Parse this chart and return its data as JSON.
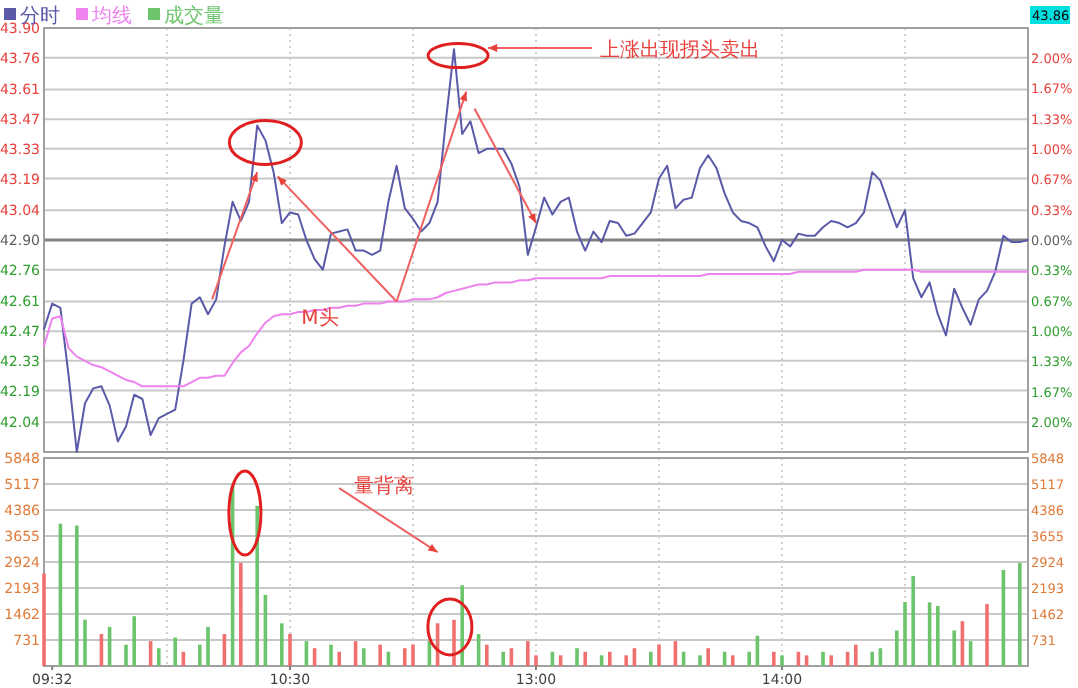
{
  "chart_data": [
    {
      "type": "line",
      "categories": [
        null,
        null,
        null,
        null,
        null,
        null,
        null,
        null,
        null,
        null,
        null,
        null,
        null,
        null,
        null,
        null,
        null,
        null,
        null,
        null,
        null,
        null,
        null,
        null,
        null,
        null,
        null,
        null,
        null,
        null,
        null,
        null,
        null,
        null,
        null,
        null,
        null,
        null,
        null,
        null,
        null,
        null,
        null,
        null,
        null,
        null,
        null,
        null,
        null,
        null,
        null,
        null,
        null,
        null,
        null,
        null,
        null,
        null,
        null,
        null,
        null,
        null,
        null,
        null,
        null,
        null,
        null,
        null,
        null,
        null,
        null,
        null,
        null,
        null,
        null,
        null,
        null,
        null,
        null,
        null,
        null,
        null,
        null,
        null,
        null,
        null,
        null,
        null,
        null,
        null,
        null,
        null,
        null,
        null,
        null,
        null,
        null,
        null,
        null,
        null,
        null,
        null,
        null,
        null,
        null,
        null,
        null,
        null,
        null,
        null,
        null,
        null,
        null,
        null,
        null,
        null,
        null,
        null,
        null,
        null,
        null
      ],
      "ylim": [
        41.9,
        43.9
      ],
      "yticks": [
        {
          "value": 41.9,
          "label": null
        },
        42.04,
        42.19,
        42.33,
        42.47,
        42.61,
        42.76,
        {
          "value": 42.9,
          "label": "42.90"
        },
        43.04,
        43.19,
        43.33,
        43.47,
        43.61,
        43.76,
        {
          "value": 43.9,
          "label": "43.90"
        }
      ],
      "y2lim": [
        -2.33,
        2.33
      ],
      "y2ticks": [
        {
          "value": -2.0,
          "label": "2.00%"
        },
        {
          "value": -1.67,
          "label": "1.67%"
        },
        {
          "value": -1.33,
          "label": "1.33%"
        },
        {
          "value": -1.0,
          "label": "1.00%"
        },
        {
          "value": -0.67,
          "label": "0.67%"
        },
        {
          "value": -0.33,
          "label": "0.33%"
        },
        {
          "value": 0,
          "label": "0.00%"
        },
        {
          "value": 0.33,
          "label": "0.33%"
        },
        {
          "value": 0.67,
          "label": "0.67%"
        },
        {
          "value": 1.0,
          "label": "1.00%"
        },
        {
          "value": 1.33,
          "label": "1.33%"
        },
        {
          "value": 1.67,
          "label": "1.67%"
        },
        {
          "value": 2.0,
          "label": "2.00%"
        }
      ],
      "tick_labels": "y",
      "grid": true,
      "legend": "top left",
      "ref_lines": [
        {
          "axis": "y",
          "value": 42.9,
          "color": "#808080"
        }
      ],
      "annotations": [
        "上涨出现拐头卖出",
        "M头",
        "43.86"
      ],
      "series": [
        {
          "name": "分时",
          "color": "#5a5aa8",
          "values": [
            42.48,
            42.6,
            42.58,
            42.26,
            41.9,
            42.13,
            42.2,
            42.21,
            42.12,
            41.95,
            42.02,
            42.17,
            42.15,
            41.98,
            42.06,
            42.08,
            42.1,
            42.33,
            42.6,
            42.63,
            42.55,
            42.62,
            42.87,
            43.08,
            42.99,
            43.08,
            43.44,
            43.37,
            43.22,
            42.98,
            43.03,
            43.02,
            42.9,
            42.81,
            42.76,
            42.93,
            42.94,
            42.95,
            42.85,
            42.85,
            42.83,
            42.85,
            43.08,
            43.25,
            43.05,
            43.0,
            42.94,
            42.98,
            43.08,
            43.46,
            43.8,
            43.4,
            43.46,
            43.31,
            43.33,
            43.33,
            43.33,
            43.26,
            43.15,
            42.83,
            42.96,
            43.1,
            43.02,
            43.08,
            43.1,
            42.94,
            42.85,
            42.94,
            42.89,
            42.99,
            42.98,
            42.92,
            42.93,
            42.98,
            43.03,
            43.19,
            43.25,
            43.05,
            43.09,
            43.1,
            43.24,
            43.3,
            43.24,
            43.12,
            43.03,
            42.99,
            42.98,
            42.96,
            42.87,
            42.8,
            42.9,
            42.87,
            42.93,
            42.92,
            42.92,
            42.96,
            42.99,
            42.98,
            42.96,
            42.98,
            43.03,
            43.22,
            43.18,
            43.07,
            42.96,
            43.04,
            42.72,
            42.63,
            42.7,
            42.55,
            42.45,
            42.67,
            42.58,
            42.5,
            42.62,
            42.66,
            42.75,
            42.92,
            42.89,
            42.89,
            42.9
          ]
        },
        {
          "name": "均线",
          "color": "#ee82ee",
          "values": [
            42.4,
            42.53,
            42.54,
            42.39,
            42.35,
            42.33,
            42.31,
            42.3,
            42.28,
            42.26,
            42.24,
            42.23,
            42.21,
            42.21,
            42.21,
            42.21,
            42.21,
            42.21,
            42.23,
            42.25,
            42.25,
            42.26,
            42.26,
            42.32,
            42.37,
            42.4,
            42.46,
            42.51,
            42.54,
            42.55,
            42.55,
            42.56,
            42.56,
            42.57,
            42.57,
            42.58,
            42.58,
            42.59,
            42.59,
            42.6,
            42.6,
            42.6,
            42.61,
            42.61,
            42.61,
            42.62,
            42.62,
            42.62,
            42.63,
            42.65,
            42.66,
            42.67,
            42.68,
            42.69,
            42.69,
            42.7,
            42.7,
            42.7,
            42.71,
            42.71,
            42.72,
            42.72,
            42.72,
            42.72,
            42.72,
            42.72,
            42.72,
            42.72,
            42.72,
            42.73,
            42.73,
            42.73,
            42.73,
            42.73,
            42.73,
            42.73,
            42.73,
            42.73,
            42.73,
            42.73,
            42.73,
            42.74,
            42.74,
            42.74,
            42.74,
            42.74,
            42.74,
            42.74,
            42.74,
            42.74,
            42.74,
            42.74,
            42.75,
            42.75,
            42.75,
            42.75,
            42.75,
            42.75,
            42.75,
            42.75,
            42.76,
            42.76,
            42.76,
            42.76,
            42.76,
            42.76,
            42.76,
            42.75,
            42.75,
            42.75,
            42.75,
            42.75,
            42.75,
            42.75,
            42.75,
            42.75,
            42.75,
            42.75,
            42.75,
            42.75,
            42.75
          ]
        }
      ]
    },
    {
      "type": "bar",
      "categories": [
        null,
        "09:32",
        null,
        null,
        null,
        null,
        null,
        null,
        null,
        null,
        null,
        null,
        null,
        null,
        null,
        null,
        null,
        null,
        null,
        null,
        null,
        null,
        null,
        null,
        null,
        null,
        null,
        null,
        null,
        null,
        "10:30",
        null,
        null,
        null,
        null,
        null,
        null,
        null,
        null,
        null,
        null,
        null,
        null,
        null,
        null,
        null,
        null,
        null,
        null,
        null,
        null,
        null,
        null,
        null,
        null,
        null,
        null,
        null,
        null,
        null,
        "13:00",
        null,
        null,
        null,
        null,
        null,
        null,
        null,
        null,
        null,
        null,
        null,
        null,
        null,
        null,
        null,
        null,
        null,
        null,
        null,
        null,
        null,
        null,
        null,
        null,
        null,
        null,
        null,
        null,
        null,
        "14:00",
        null,
        null,
        null,
        null,
        null,
        null,
        null,
        null,
        null,
        null,
        null,
        null,
        null,
        null,
        null,
        null,
        null,
        null,
        null,
        null,
        null,
        null,
        null,
        null,
        null,
        null,
        null,
        null,
        null,
        null
      ],
      "ylim": [
        0,
        5848
      ],
      "yticks": [
        731,
        1462,
        2193,
        2924,
        3655,
        4386,
        5117,
        5848
      ],
      "y2lim": [
        0,
        5848
      ],
      "y2ticks": [
        731,
        1462,
        2193,
        2924,
        3655,
        4386,
        5117,
        5848
      ],
      "grid": true,
      "legend": "top left",
      "annotations": [
        "量背离"
      ],
      "series": [
        {
          "name": "成交量",
          "color": "#6cc46c",
          "values": [
            2600,
            null,
            4000,
            null,
            3950,
            1300,
            null,
            900,
            1100,
            null,
            600,
            1400,
            null,
            700,
            500,
            null,
            800,
            400,
            null,
            600,
            1100,
            null,
            900,
            5100,
            2900,
            null,
            4500,
            2000,
            null,
            1200,
            900,
            null,
            700,
            500,
            null,
            600,
            400,
            null,
            700,
            500,
            null,
            600,
            400,
            null,
            500,
            600,
            null,
            700,
            1200,
            null,
            1300,
            2270,
            null,
            900,
            600,
            null,
            400,
            500,
            null,
            700,
            300,
            null,
            400,
            300,
            null,
            500,
            400,
            null,
            300,
            400,
            null,
            300,
            500,
            null,
            400,
            600,
            null,
            700,
            400,
            null,
            300,
            500,
            null,
            400,
            300,
            null,
            400,
            850,
            null,
            400,
            300,
            null,
            400,
            300,
            null,
            400,
            300,
            null,
            400,
            600,
            null,
            400,
            500,
            null,
            1000,
            1800,
            2530,
            null,
            1790,
            1690,
            null,
            1000,
            1260,
            700,
            null,
            1740,
            null,
            2700,
            null,
            2900,
            null
          ],
          "colors": [
            "#f07070",
            null,
            "#6cc46c",
            null,
            "#6cc46c",
            "#6cc46c",
            null,
            "#f07070",
            "#6cc46c",
            null,
            "#6cc46c",
            "#6cc46c",
            null,
            "#f07070",
            "#6cc46c",
            null,
            "#6cc46c",
            "#f07070",
            null,
            "#6cc46c",
            "#6cc46c",
            null,
            "#f07070",
            "#6cc46c",
            "#f07070",
            null,
            "#6cc46c",
            "#6cc46c",
            null,
            "#6cc46c",
            "#f07070",
            null,
            "#6cc46c",
            "#f07070",
            null,
            "#6cc46c",
            "#f07070",
            null,
            "#f07070",
            "#6cc46c",
            null,
            "#f07070",
            "#6cc46c",
            null,
            "#f07070",
            "#f07070",
            null,
            "#6cc46c",
            "#f07070",
            null,
            "#f07070",
            "#6cc46c",
            null,
            "#6cc46c",
            "#f07070",
            null,
            "#6cc46c",
            "#f07070",
            null,
            "#f07070",
            "#f07070",
            null,
            "#6cc46c",
            "#f07070",
            null,
            "#6cc46c",
            "#f07070",
            null,
            "#6cc46c",
            "#f07070",
            null,
            "#f07070",
            "#f07070",
            null,
            "#6cc46c",
            "#f07070",
            null,
            "#f07070",
            "#6cc46c",
            null,
            "#6cc46c",
            "#f07070",
            null,
            "#6cc46c",
            "#f07070",
            null,
            "#6cc46c",
            "#6cc46c",
            null,
            "#f07070",
            "#6cc46c",
            null,
            "#f07070",
            "#f07070",
            null,
            "#6cc46c",
            "#f07070",
            null,
            "#f07070",
            "#f07070",
            null,
            "#6cc46c",
            "#6cc46c",
            null,
            "#6cc46c",
            "#6cc46c",
            "#6cc46c",
            null,
            "#6cc46c",
            "#6cc46c",
            null,
            "#6cc46c",
            "#f07070",
            "#6cc46c",
            null,
            "#f07070",
            null,
            "#6cc46c",
            null,
            "#6cc46c",
            null
          ]
        }
      ]
    }
  ]
}
